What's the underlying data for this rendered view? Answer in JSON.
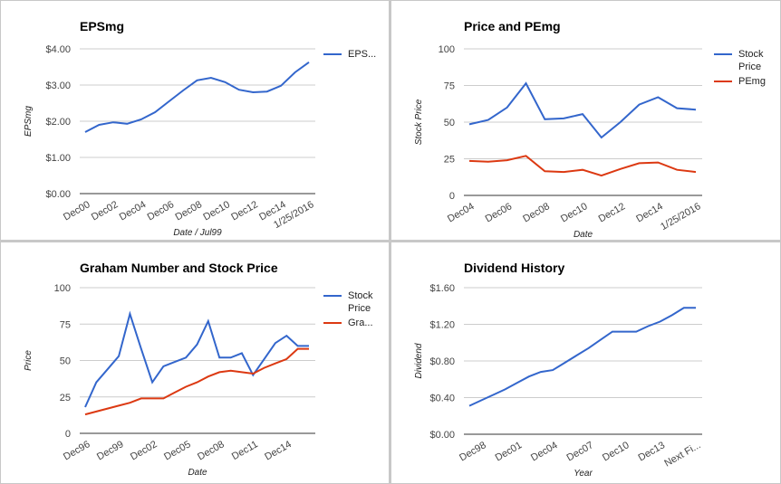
{
  "chart_data": [
    {
      "type": "line",
      "title": "EPSmg",
      "x_label": "Date / Jul99",
      "y_label": "EPSmg",
      "categories": [
        "Dec00",
        null,
        "Dec02",
        null,
        "Dec04",
        null,
        "Dec06",
        null,
        "Dec08",
        null,
        "Dec10",
        null,
        "Dec12",
        null,
        "Dec14",
        null,
        "1/25/2016"
      ],
      "series": [
        {
          "name": "EPS...",
          "color": "#3366cc",
          "values": [
            1.7,
            1.9,
            1.97,
            1.93,
            2.05,
            2.25,
            2.55,
            2.85,
            3.13,
            3.2,
            3.08,
            2.87,
            2.8,
            2.82,
            2.98,
            3.35,
            3.63
          ]
        }
      ],
      "ylim": [
        0,
        4
      ],
      "yticks": [
        {
          "value": 0,
          "label": "$0.00"
        },
        {
          "value": 1,
          "label": "$1.00"
        },
        {
          "value": 2,
          "label": "$2.00"
        },
        {
          "value": 3,
          "label": "$3.00"
        },
        {
          "value": 4,
          "label": "$4.00"
        }
      ],
      "grid": true,
      "legend": "right"
    },
    {
      "type": "line",
      "title": "Price and PEmg",
      "x_label": "Date",
      "y_label": "Stock Price",
      "categories": [
        "Dec04",
        null,
        "Dec06",
        null,
        "Dec08",
        null,
        "Dec10",
        null,
        "Dec12",
        null,
        "Dec14",
        null,
        "1/25/2016"
      ],
      "series": [
        {
          "name": "Stock Price",
          "color": "#3366cc",
          "values": [
            48.5,
            51.5,
            60,
            76.5,
            52,
            52.5,
            55.5,
            39.5,
            50,
            62,
            67,
            59.5,
            58.5
          ]
        },
        {
          "name": "PEmg",
          "color": "#dc3912",
          "values": [
            23.5,
            23,
            24,
            27,
            16.5,
            16,
            17.5,
            13.5,
            18,
            22,
            22.5,
            17.5,
            16
          ]
        }
      ],
      "ylim": [
        0,
        100
      ],
      "yticks": [
        0,
        25,
        50,
        75,
        100
      ],
      "grid": true,
      "legend": "right"
    },
    {
      "type": "line",
      "title": "Graham Number and Stock Price",
      "x_label": "Date",
      "y_label": "Price",
      "categories": [
        "Dec96",
        null,
        null,
        "Dec99",
        null,
        null,
        "Dec02",
        null,
        null,
        "Dec05",
        null,
        null,
        "Dec08",
        null,
        null,
        "Dec11",
        null,
        null,
        "Dec14",
        null,
        null
      ],
      "series": [
        {
          "name": "Stock Price",
          "color": "#3366cc",
          "values": [
            18,
            35,
            44,
            53,
            82,
            58,
            35,
            46,
            49,
            52,
            61,
            77,
            52,
            52,
            55,
            40,
            51,
            62,
            67,
            60,
            60
          ]
        },
        {
          "name": "Gra...",
          "color": "#dc3912",
          "values": [
            13,
            15,
            17,
            19,
            21,
            24,
            24,
            24,
            28,
            32,
            35,
            39,
            42,
            43,
            42,
            41,
            45,
            48,
            51,
            58,
            58
          ]
        }
      ],
      "ylim": [
        0,
        100
      ],
      "yticks": [
        0,
        25,
        50,
        75,
        100
      ],
      "grid": true,
      "legend": "right"
    },
    {
      "type": "line",
      "title": "Dividend History",
      "x_label": "Year",
      "y_label": "Dividend",
      "categories": [
        null,
        "Dec98",
        null,
        null,
        "Dec01",
        null,
        null,
        "Dec04",
        null,
        null,
        "Dec07",
        null,
        null,
        "Dec10",
        null,
        null,
        "Dec13",
        null,
        null,
        "Next Fi..."
      ],
      "series": [
        {
          "name": "Dividend",
          "color": "#3366cc",
          "values": [
            0.31,
            0.37,
            0.43,
            0.49,
            0.56,
            0.63,
            0.68,
            0.7,
            0.78,
            0.86,
            0.94,
            1.03,
            1.12,
            1.12,
            1.12,
            1.18,
            1.23,
            1.3,
            1.38,
            1.38
          ]
        }
      ],
      "ylim": [
        0,
        1.6
      ],
      "yticks": [
        {
          "value": 0,
          "label": "$0.00"
        },
        {
          "value": 0.4,
          "label": "$0.40"
        },
        {
          "value": 0.8,
          "label": "$0.80"
        },
        {
          "value": 1.2,
          "label": "$1.20"
        },
        {
          "value": 1.6,
          "label": "$1.60"
        }
      ],
      "grid": true,
      "legend": "none"
    }
  ]
}
